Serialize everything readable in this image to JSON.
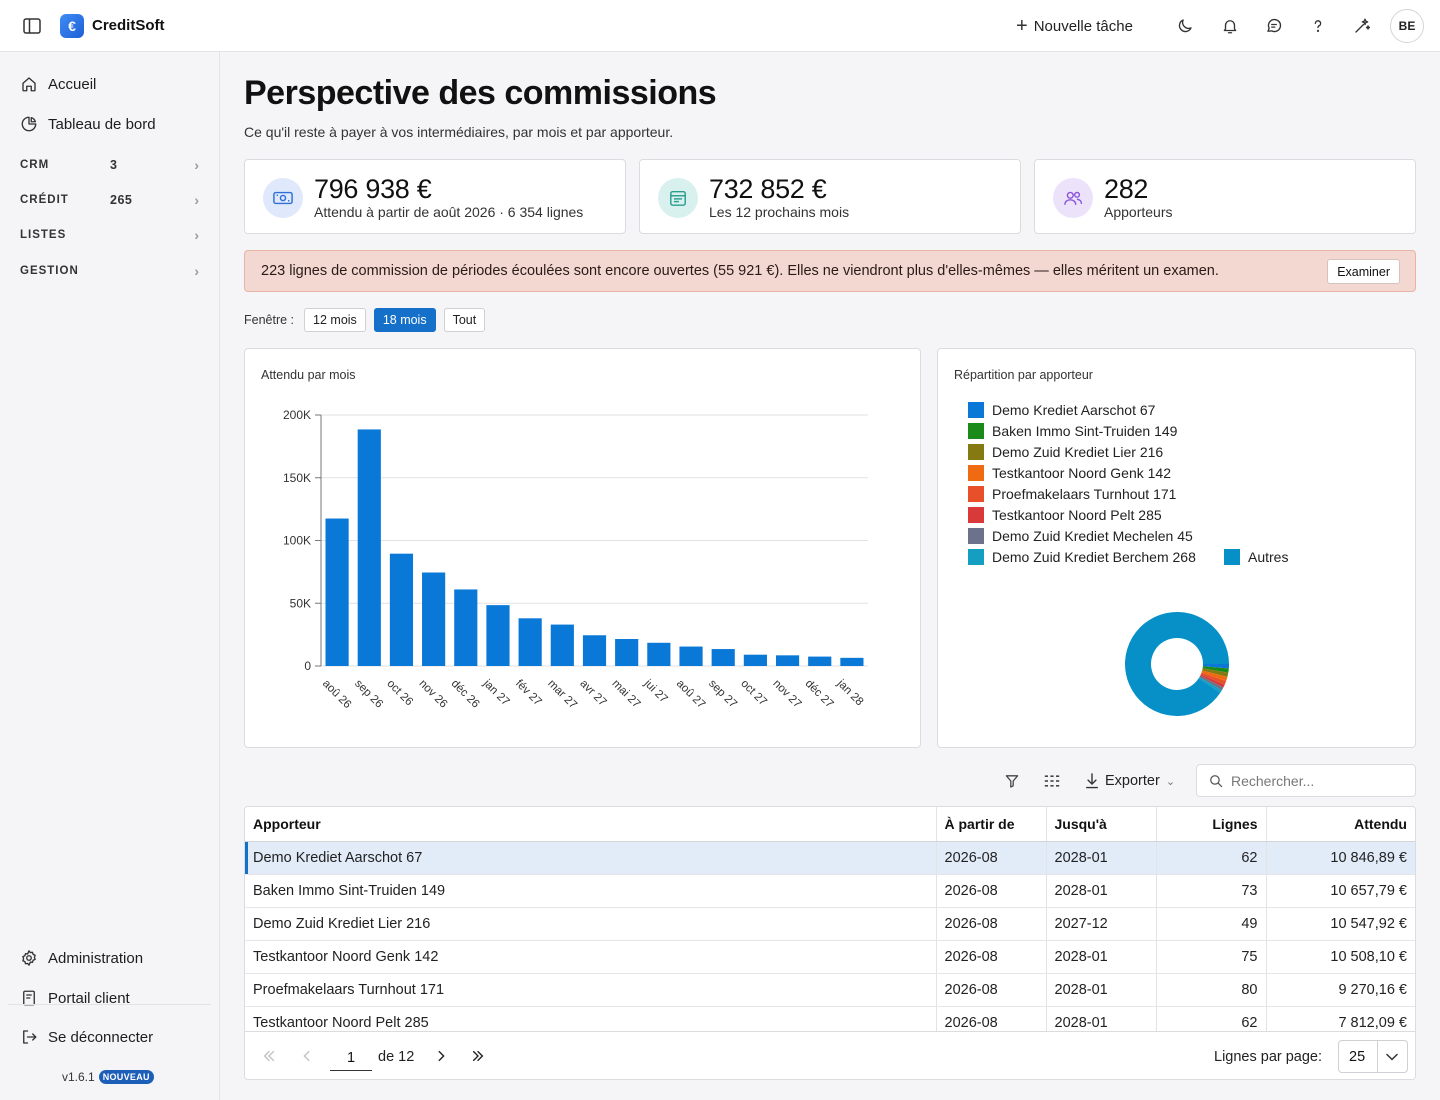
{
  "app": {
    "name": "CreditSoft",
    "logo_glyph": "€"
  },
  "header": {
    "new_task_label": "Nouvelle tâche",
    "avatar_initials": "BE"
  },
  "sidebar": {
    "top_items": [
      {
        "label": "Accueil",
        "icon": "home-icon"
      },
      {
        "label": "Tableau de bord",
        "icon": "pie-chart-icon"
      }
    ],
    "groups": [
      {
        "label": "CRM",
        "count": "3"
      },
      {
        "label": "CRÉDIT",
        "count": "265"
      },
      {
        "label": "LISTES",
        "count": ""
      },
      {
        "label": "GESTION",
        "count": ""
      }
    ],
    "bottom_items": [
      {
        "label": "Administration",
        "icon": "gear-icon"
      },
      {
        "label": "Portail client",
        "icon": "portal-icon"
      },
      {
        "label": "Se déconnecter",
        "icon": "logout-icon"
      }
    ],
    "version": "v1.6.1",
    "version_badge": "NOUVEAU"
  },
  "page": {
    "title": "Perspective des commissions",
    "subtitle": "Ce qu'il reste à payer à vos intermédiaires, par mois et par apporteur."
  },
  "kpis": [
    {
      "value": "796 938 €",
      "label": "Attendu à partir de août 2026 · 6 354 lignes",
      "icon": "banknote-icon",
      "icon_bg": "#dfe9fb",
      "icon_color": "#2f6fd6"
    },
    {
      "value": "732 852 €",
      "label": "Les 12 prochains mois",
      "icon": "calendar-icon",
      "icon_bg": "#d9f1ee",
      "icon_color": "#2a9d8f"
    },
    {
      "value": "282",
      "label": "Apporteurs",
      "icon": "users-icon",
      "icon_bg": "#ece3fb",
      "icon_color": "#8a56d8"
    }
  ],
  "alert": {
    "text": "223 lignes de commission de périodes écoulées sont encore ouvertes (55 921 €). Elles ne viendront plus d'elles-mêmes — elles méritent un examen.",
    "button_label": "Examiner"
  },
  "window_filter": {
    "label": "Fenêtre :",
    "options": [
      "12 mois",
      "18 mois",
      "Tout"
    ],
    "selected": "18 mois"
  },
  "charts": {
    "bar_title": "Attendu par mois",
    "donut_title": "Répartition par apporteur"
  },
  "chart_data": [
    {
      "type": "bar",
      "title": "Attendu par mois",
      "categories": [
        "aoû 26",
        "sep 26",
        "oct 26",
        "nov 26",
        "déc 26",
        "jan 27",
        "fév 27",
        "mar 27",
        "avr 27",
        "mai 27",
        "jui 27",
        "aoû 27",
        "sep 27",
        "oct 27",
        "nov 27",
        "déc 27",
        "jan 28"
      ],
      "values": [
        117500,
        188500,
        89500,
        74500,
        61000,
        48500,
        38000,
        33000,
        24500,
        21500,
        18500,
        15500,
        13500,
        9000,
        8500,
        7500,
        6500
      ],
      "yticks": [
        0,
        50000,
        100000,
        150000,
        200000
      ],
      "ytick_labels": [
        "0",
        "50K",
        "100K",
        "150K",
        "200K"
      ],
      "ylim": [
        0,
        200000
      ],
      "grid": true,
      "color": "#0a78d7"
    },
    {
      "type": "pie",
      "title": "Répartition par apporteur",
      "legend_position": "top",
      "labels": [
        "Demo Krediet Aarschot 67",
        "Baken Immo Sint-Truiden 149",
        "Demo Zuid Krediet Lier 216",
        "Testkantoor Noord Genk 142",
        "Proefmakelaars Turnhout 171",
        "Testkantoor Noord Pelt 285",
        "Demo Zuid Krediet Mechelen 45",
        "Demo Zuid Krediet Berchem 268",
        "Autres"
      ],
      "values": [
        10846.89,
        10657.79,
        10547.92,
        10508.1,
        9270.16,
        7812.09,
        7500,
        7300,
        722495
      ],
      "colors": [
        "#0a78d7",
        "#1a8a1a",
        "#857a12",
        "#ef6a10",
        "#e8502a",
        "#d83a3a",
        "#6c7289",
        "#139ec2",
        "#0790c8"
      ]
    }
  ],
  "toolbar": {
    "export_label": "Exporter",
    "search_placeholder": "Rechercher..."
  },
  "table": {
    "columns": [
      {
        "label": "Apporteur",
        "align": "left"
      },
      {
        "label": "À partir de",
        "align": "left"
      },
      {
        "label": "Jusqu'à",
        "align": "left"
      },
      {
        "label": "Lignes",
        "align": "right"
      },
      {
        "label": "Attendu",
        "align": "right"
      }
    ],
    "rows": [
      [
        "Demo Krediet Aarschot 67",
        "2026-08",
        "2028-01",
        "62",
        "10 846,89 €"
      ],
      [
        "Baken Immo Sint-Truiden 149",
        "2026-08",
        "2028-01",
        "73",
        "10 657,79 €"
      ],
      [
        "Demo Zuid Krediet Lier 216",
        "2026-08",
        "2027-12",
        "49",
        "10 547,92 €"
      ],
      [
        "Testkantoor Noord Genk 142",
        "2026-08",
        "2028-01",
        "75",
        "10 508,10 €"
      ],
      [
        "Proefmakelaars Turnhout 171",
        "2026-08",
        "2028-01",
        "80",
        "9 270,16 €"
      ],
      [
        "Testkantoor Noord Pelt 285",
        "2026-08",
        "2028-01",
        "62",
        "7 812,09 €"
      ]
    ],
    "selected_row": 0
  },
  "pager": {
    "current_page": "1",
    "of_label": "de 12",
    "rows_per_page_label": "Lignes par page:",
    "rows_per_page": "25"
  }
}
